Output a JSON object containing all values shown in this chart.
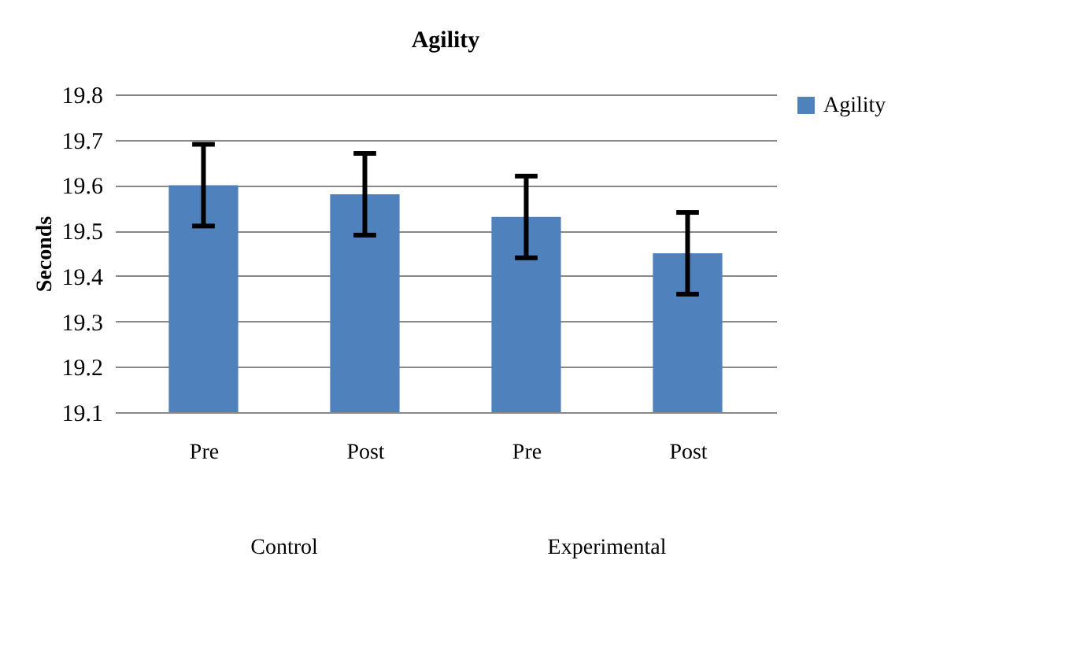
{
  "chart_data": {
    "type": "bar",
    "title": "Agility",
    "ylabel": "Seconds",
    "categories": [
      "Pre",
      "Post",
      "Pre",
      "Post"
    ],
    "series": [
      {
        "name": "Agility",
        "color": "#4f81bd",
        "values": [
          19.6,
          19.58,
          19.53,
          19.45
        ],
        "errors": [
          0.09,
          0.09,
          0.09,
          0.09
        ]
      }
    ],
    "annotations": [
      "Control",
      "Experimental"
    ],
    "ylim": [
      19.1,
      19.8
    ],
    "yticks": [
      19.1,
      19.2,
      19.3,
      19.4,
      19.5,
      19.6,
      19.7,
      19.8
    ],
    "grid": "y",
    "legend": "right"
  }
}
